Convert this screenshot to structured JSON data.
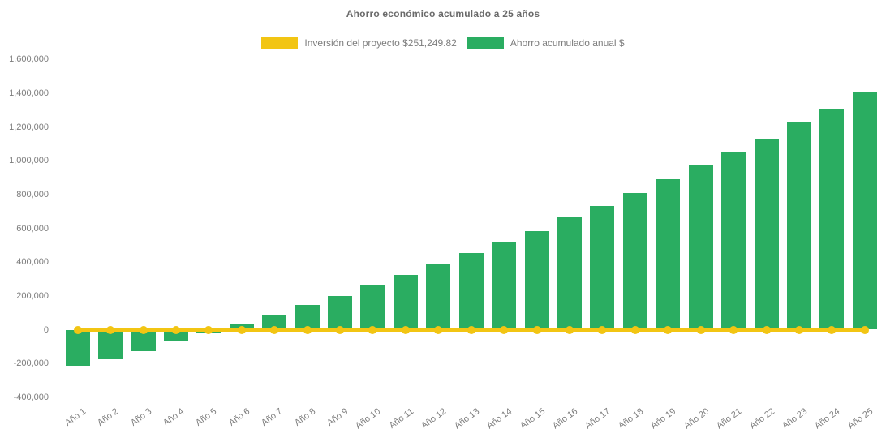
{
  "title": "Ahorro económico acumulado a 25 años",
  "colors": {
    "green": "#2aad61",
    "yellow": "#f2c513",
    "text": "#7d7d7d",
    "title_text": "#6a6a6a",
    "background": "#ffffff"
  },
  "legend": [
    {
      "label": "Inversión del proyecto $251,249.82",
      "color_key": "yellow",
      "swatch": "yellow-rect"
    },
    {
      "label": "Ahorro acumulado anual $",
      "color_key": "green",
      "swatch": "green-rect"
    }
  ],
  "chart_data": {
    "type": "bar",
    "title": "Ahorro económico acumulado a 25 años",
    "xlabel": "",
    "ylabel": "",
    "grid": false,
    "legend_position": "top",
    "ylim": [
      -400000,
      1600000
    ],
    "ytick_step": 200000,
    "yticks": [
      {
        "label": "1,600,000",
        "value": 1600000
      },
      {
        "label": "1,400,000",
        "value": 1400000
      },
      {
        "label": "1,200,000",
        "value": 1200000
      },
      {
        "label": "1,000,000",
        "value": 1000000
      },
      {
        "label": "800,000",
        "value": 800000
      },
      {
        "label": "600,000",
        "value": 600000
      },
      {
        "label": "400,000",
        "value": 400000
      },
      {
        "label": "200,000",
        "value": 200000
      },
      {
        "label": "0",
        "value": 0
      },
      {
        "label": "-200,000",
        "value": -200000
      },
      {
        "label": "-400,000",
        "value": -400000
      }
    ],
    "categories": [
      "Año 1",
      "Año 2",
      "Año 3",
      "Año 4",
      "Año 5",
      "Año 6",
      "Año 7",
      "Año 8",
      "Año 9",
      "Año 10",
      "Año 11",
      "Año 12",
      "Año 13",
      "Año 14",
      "Año 15",
      "Año 16",
      "Año 17",
      "Año 18",
      "Año 19",
      "Año 20",
      "Año 21",
      "Año 22",
      "Año 23",
      "Año 24",
      "Año 25"
    ],
    "series": [
      {
        "name": "Ahorro acumulado anual $",
        "type": "bar",
        "color": "#2aad61",
        "values": [
          -215000,
          -175000,
          -125000,
          -70000,
          -15000,
          35000,
          90000,
          145000,
          200000,
          265000,
          325000,
          385000,
          455000,
          520000,
          585000,
          665000,
          730000,
          810000,
          890000,
          970000,
          1050000,
          1130000,
          1225000,
          1310000,
          1410000
        ]
      },
      {
        "name": "Inversión del proyecto $251,249.82",
        "type": "line",
        "color": "#f2c513",
        "marker": "circle",
        "values": [
          0,
          0,
          0,
          0,
          0,
          0,
          0,
          0,
          0,
          0,
          0,
          0,
          0,
          0,
          0,
          0,
          0,
          0,
          0,
          0,
          0,
          0,
          0,
          0,
          0
        ]
      }
    ]
  }
}
